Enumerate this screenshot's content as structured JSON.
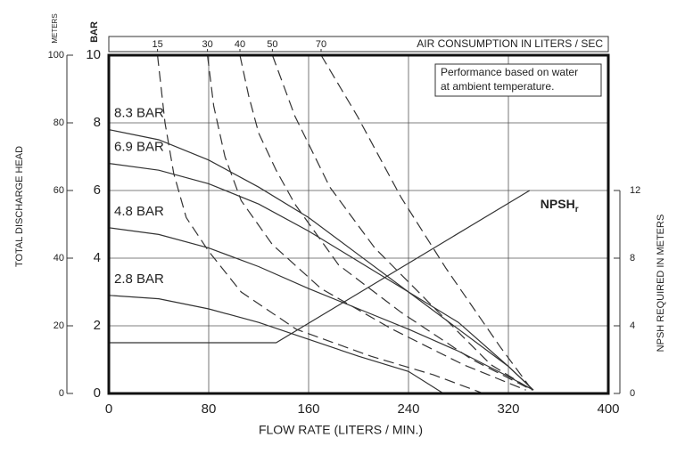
{
  "chart_data": {
    "type": "line",
    "y_axis_unit": "METERS",
    "bar_axis_unit": "BAR",
    "top_axis_title": "AIR CONSUMPTION IN LITERS / SEC",
    "y_label": "TOTAL DISCHARGE HEAD",
    "x_label": "FLOW RATE (LITERS / MIN.)",
    "y2_label": "NPSH REQUIRED IN METERS",
    "annotation": [
      "Performance based on water",
      "at ambient temperature."
    ],
    "xlim": [
      0,
      400
    ],
    "xticks": [
      0,
      80,
      160,
      240,
      320,
      400
    ],
    "ylim": [
      0,
      100
    ],
    "yticks": [
      0,
      20,
      40,
      60,
      80,
      100
    ],
    "barlim": [
      0,
      10
    ],
    "barticks": [
      0,
      2,
      4,
      6,
      8,
      10
    ],
    "y2lim": [
      0,
      20
    ],
    "y2ticks": [
      0,
      4,
      8,
      12
    ],
    "grid": true,
    "series": [
      {
        "name": "8.3 BAR",
        "color": "#333333",
        "dashed": false,
        "x": [
          0,
          40,
          80,
          120,
          160,
          200,
          240,
          280,
          320,
          340
        ],
        "values": [
          78,
          75,
          69,
          61,
          52,
          41,
          30,
          19,
          8,
          1
        ]
      },
      {
        "name": "6.9 BAR",
        "color": "#333333",
        "dashed": false,
        "x": [
          0,
          40,
          80,
          120,
          160,
          200,
          240,
          280,
          320,
          340
        ],
        "values": [
          68,
          66,
          62,
          56,
          48,
          39,
          30,
          21,
          8,
          1
        ]
      },
      {
        "name": "4.8 BAR",
        "color": "#333333",
        "dashed": false,
        "x": [
          0,
          40,
          80,
          120,
          160,
          200,
          240,
          280,
          320,
          340
        ],
        "values": [
          49,
          47,
          43,
          37.5,
          31,
          25,
          19,
          12.5,
          5,
          1
        ]
      },
      {
        "name": "2.8 BAR",
        "color": "#333333",
        "dashed": false,
        "x": [
          0,
          40,
          80,
          120,
          160,
          200,
          240,
          268
        ],
        "values": [
          29,
          28,
          25,
          21,
          16,
          11,
          6.5,
          0
        ]
      },
      {
        "name": "15",
        "color": "#333333",
        "dashed": true,
        "x": [
          39,
          45,
          52,
          62,
          80,
          106,
          150,
          210,
          260,
          300
        ],
        "values": [
          100,
          80,
          65,
          52,
          42,
          30,
          19,
          11,
          5.5,
          0
        ]
      },
      {
        "name": "30",
        "color": "#333333",
        "dashed": true,
        "x": [
          79,
          84,
          93,
          106,
          131,
          170,
          227,
          284,
          334
        ],
        "values": [
          100,
          85,
          70,
          57,
          44,
          31,
          19,
          8.5,
          1
        ]
      },
      {
        "name": "40",
        "color": "#333333",
        "dashed": true,
        "x": [
          105,
          112,
          120,
          134,
          149,
          184,
          234,
          291,
          339
        ],
        "values": [
          100,
          88,
          77,
          66,
          56,
          38,
          24,
          10,
          1
        ]
      },
      {
        "name": "50",
        "color": "#333333",
        "dashed": true,
        "x": [
          131,
          149,
          177,
          213,
          256,
          306,
          339
        ],
        "values": [
          100,
          82,
          61,
          43,
          27,
          8.5,
          1
        ]
      },
      {
        "name": "70",
        "color": "#333333",
        "dashed": true,
        "x": [
          170,
          199,
          234,
          270,
          313,
          339
        ],
        "values": [
          100,
          82,
          58,
          37,
          14,
          1
        ]
      },
      {
        "name": "NPSH",
        "subscript": "r",
        "color": "#333333",
        "dashed": false,
        "axis": "y2",
        "x": [
          0,
          134,
          337
        ],
        "values": [
          3,
          3,
          12
        ]
      }
    ]
  }
}
